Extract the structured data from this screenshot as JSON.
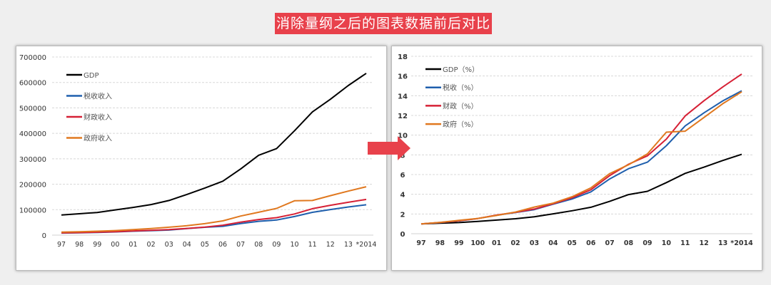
{
  "title": "消除量纲之后的图表数据前后对比",
  "colors": {
    "gdp": "#000000",
    "tax": "#1f5fad",
    "fiscal": "#d62035",
    "gov": "#e0781f",
    "title_bg": "#e8414b",
    "arrow": "#e8414b"
  },
  "chart_data": [
    {
      "type": "line",
      "categories": [
        "97",
        "98",
        "99",
        "00",
        "01",
        "02",
        "03",
        "04",
        "05",
        "06",
        "07",
        "08",
        "09",
        "10",
        "11",
        "12",
        "13",
        "*2014"
      ],
      "ylim": [
        0,
        700000
      ],
      "yticks": [
        "0",
        "100000",
        "200000",
        "300000",
        "400000",
        "500000",
        "600000",
        "700000"
      ],
      "grid": true,
      "legend": "top-left",
      "series": [
        {
          "name": "GDP",
          "color": "#000000",
          "values": [
            79000,
            84000,
            89000,
            99000,
            109000,
            120000,
            136000,
            160000,
            185000,
            212000,
            260000,
            314000,
            340000,
            410000,
            484000,
            534000,
            588000,
            636000
          ]
        },
        {
          "name": "税收收入",
          "color": "#1f5fad",
          "values": [
            8200,
            9300,
            10700,
            12600,
            15300,
            17600,
            20000,
            25700,
            30900,
            34800,
            45600,
            54200,
            59500,
            73200,
            89700,
            100600,
            110500,
            119200
          ]
        },
        {
          "name": "财政收入",
          "color": "#d62035",
          "values": [
            8700,
            9900,
            11400,
            13400,
            16400,
            18900,
            21700,
            26400,
            31600,
            38800,
            51300,
            61300,
            68500,
            83100,
            103900,
            117300,
            129200,
            140400
          ]
        },
        {
          "name": "政府收入",
          "color": "#e0781f",
          "values": [
            12000,
            13500,
            15500,
            18000,
            21500,
            26000,
            31000,
            37000,
            45000,
            56000,
            75000,
            90000,
            105000,
            135000,
            136000,
            155000,
            173000,
            190000
          ]
        }
      ]
    },
    {
      "type": "line",
      "categories": [
        "97",
        "98",
        "99",
        "100",
        "01",
        "02",
        "03",
        "04",
        "05",
        "06",
        "07",
        "08",
        "09",
        "10",
        "11",
        "12",
        "13",
        "*2014"
      ],
      "ylim": [
        0,
        18
      ],
      "yticks": [
        "0",
        "2",
        "4",
        "6",
        "8",
        "10",
        "12",
        "14",
        "16",
        "18"
      ],
      "grid": true,
      "legend": "top-left",
      "series": [
        {
          "name": "GDP（%）",
          "color": "#000000",
          "values": [
            1,
            1.06,
            1.13,
            1.25,
            1.38,
            1.52,
            1.72,
            2.02,
            2.33,
            2.68,
            3.28,
            3.97,
            4.3,
            5.18,
            6.12,
            6.75,
            7.43,
            8.05
          ]
        },
        {
          "name": "税收（%）",
          "color": "#1f5fad",
          "values": [
            1,
            1.13,
            1.3,
            1.54,
            1.87,
            2.15,
            2.44,
            3.0,
            3.52,
            4.24,
            5.56,
            6.6,
            7.26,
            8.93,
            10.94,
            12.27,
            13.48,
            14.5
          ]
        },
        {
          "name": "财政（%）",
          "color": "#d62035",
          "values": [
            1,
            1.14,
            1.31,
            1.54,
            1.89,
            2.17,
            2.5,
            3.04,
            3.64,
            4.46,
            5.9,
            7.05,
            7.9,
            9.6,
            11.95,
            13.5,
            14.9,
            16.2
          ]
        },
        {
          "name": "政府（%）",
          "color": "#e0781f",
          "values": [
            1,
            1.15,
            1.35,
            1.55,
            1.85,
            2.2,
            2.7,
            3.1,
            3.75,
            4.65,
            6.1,
            7.0,
            8.1,
            10.3,
            10.4,
            11.8,
            13.2,
            14.4
          ]
        }
      ]
    }
  ]
}
